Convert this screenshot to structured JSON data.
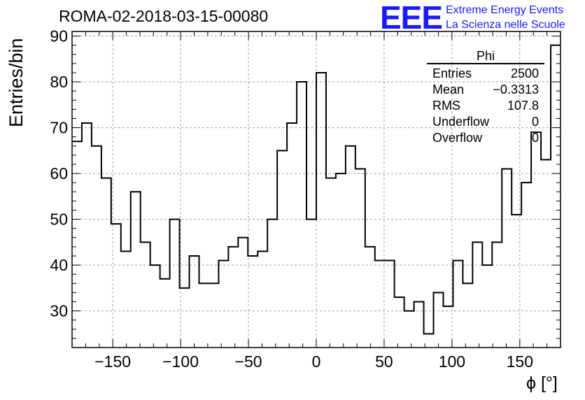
{
  "header": {
    "title": "ROMA-02-2018-03-15-00080",
    "logo_mark": "EEE",
    "logo_line1": "Extreme Energy Events",
    "logo_line2": "La Scienza nelle Scuole"
  },
  "stats": {
    "name": "Phi",
    "rows": [
      {
        "label": "Entries",
        "value": "2500"
      },
      {
        "label": "Mean",
        "value": "−0.3313"
      },
      {
        "label": "RMS",
        "value": "107.8"
      },
      {
        "label": "Underflow",
        "value": "0"
      },
      {
        "label": "Overflow",
        "value": "0"
      }
    ]
  },
  "colors": {
    "line": "#000000",
    "grid": "#9e9e9e",
    "logo": "#1a1aff"
  },
  "chart_data": {
    "type": "bar",
    "style": "step-histogram",
    "xlabel": "ϕ [°]",
    "ylabel": "Entries/bin",
    "xlim": [
      -180,
      180
    ],
    "ylim": [
      22,
      91
    ],
    "grid": true,
    "bin_width": 7.2,
    "bin_edges_start": -180,
    "x_ticks": [
      -150,
      -100,
      -50,
      0,
      50,
      100,
      150
    ],
    "x_tick_labels": [
      "−150",
      "−100",
      "−50",
      "0",
      "50",
      "100",
      "150"
    ],
    "y_ticks": [
      30,
      40,
      50,
      60,
      70,
      80,
      90
    ],
    "y_tick_labels": [
      "30",
      "40",
      "50",
      "60",
      "70",
      "80",
      "90"
    ],
    "values": [
      67,
      71,
      66,
      59,
      49,
      43,
      56,
      45,
      40,
      37,
      50,
      35,
      42,
      36,
      36,
      41,
      44,
      46,
      42,
      43,
      50,
      65,
      71,
      80,
      50,
      82,
      59,
      60,
      66,
      61,
      44,
      41,
      41,
      33,
      30,
      32,
      25,
      34,
      31,
      41,
      36,
      45,
      40,
      45,
      61,
      51,
      58,
      69,
      63,
      88
    ]
  }
}
